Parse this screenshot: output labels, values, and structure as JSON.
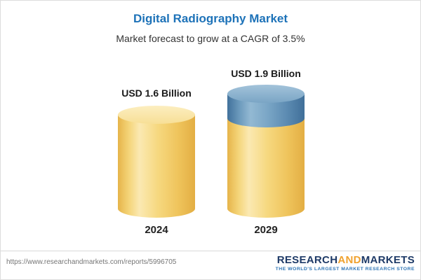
{
  "header": {
    "title": "Digital Radiography Market",
    "subtitle": "Market forecast to grow at a CAGR of 3.5%"
  },
  "chart_data": {
    "type": "bar",
    "variant": "3d-cylinder",
    "title": "Digital Radiography Market",
    "subtitle": "Market forecast to grow at a CAGR of 3.5%",
    "categories": [
      "2024",
      "2029"
    ],
    "values": [
      1.6,
      1.9
    ],
    "value_labels": [
      "USD 1.6 Billion",
      "USD 1.9 Billion"
    ],
    "unit": "USD Billion",
    "cagr": "3.5%",
    "ylim": [
      0,
      2
    ],
    "legend": "none",
    "grid": "off",
    "colors": {
      "base_segment": "#F2CC66",
      "growth_segment": "#5D8CB0",
      "title_accent": "#1D72B8"
    }
  },
  "footer": {
    "url": "https://www.researchandmarkets.com/reports/5996705",
    "logo": {
      "part1": "RESEARCH",
      "part2": "AND",
      "part3": "MARKETS",
      "tagline": "THE WORLD'S LARGEST MARKET RESEARCH STORE"
    }
  }
}
